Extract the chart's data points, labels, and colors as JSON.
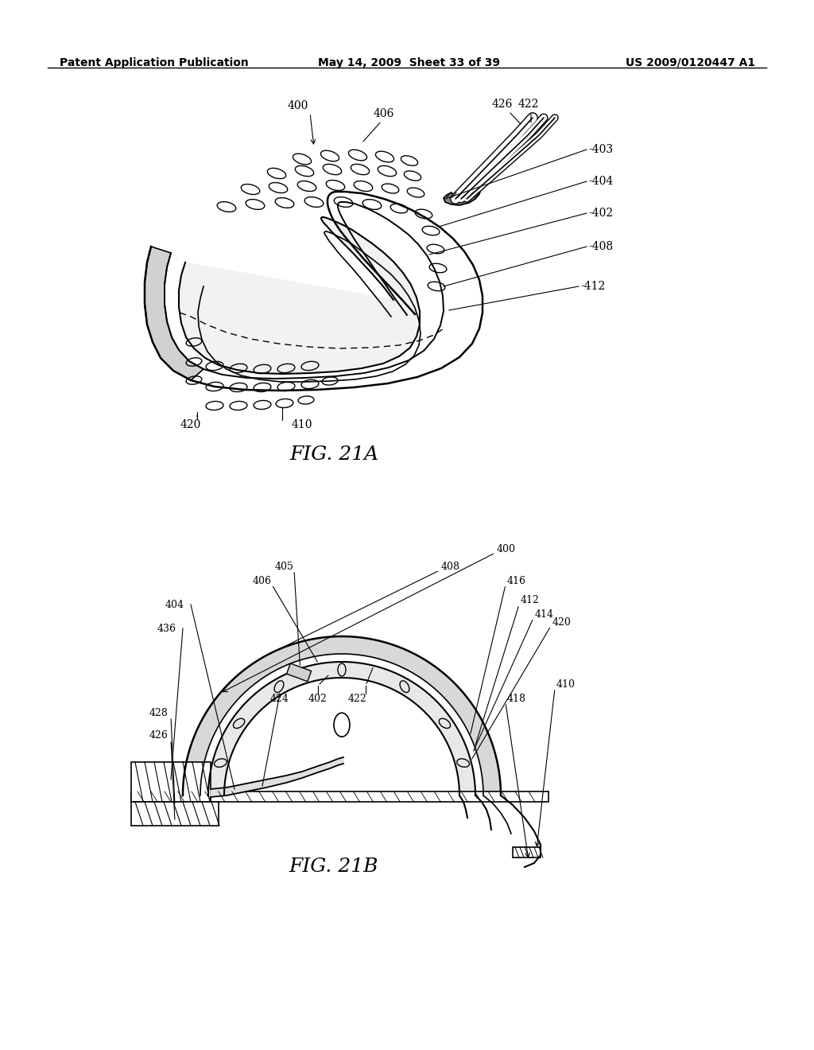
{
  "background_color": "#ffffff",
  "header_left": "Patent Application Publication",
  "header_center": "May 14, 2009  Sheet 33 of 39",
  "header_right": "US 2009/0120447 A1",
  "fig_label_a": "FIG. 21A",
  "fig_label_b": "FIG. 21B"
}
